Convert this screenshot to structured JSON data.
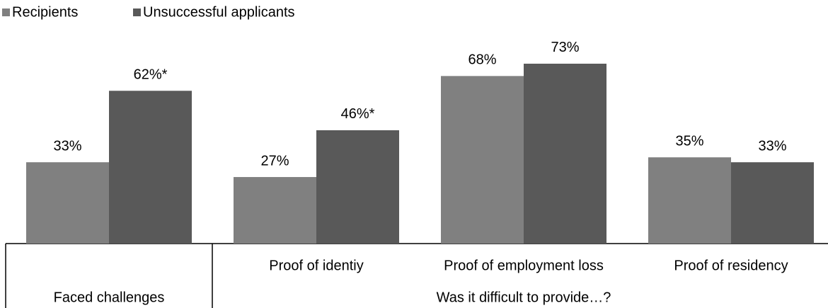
{
  "chart_data": {
    "type": "bar",
    "categories": [
      "Faced challenges",
      "Proof of identiy",
      "Proof of employment loss",
      "Proof of residency"
    ],
    "group_label": "Was it difficult to provide…?",
    "series": [
      {
        "name": "Recipients",
        "color": "#808080",
        "values": [
          33,
          27,
          68,
          35
        ],
        "value_labels": [
          "33%",
          "27%",
          "68%",
          "35%"
        ]
      },
      {
        "name": "Unsuccessful applicants",
        "color": "#595959",
        "values": [
          62,
          46,
          73,
          33
        ],
        "value_labels": [
          "62%*",
          "46%*",
          "73%",
          "33%"
        ]
      }
    ],
    "legend": "top-left"
  }
}
